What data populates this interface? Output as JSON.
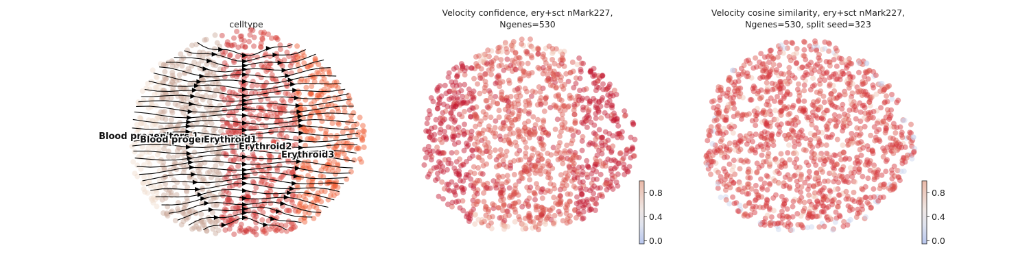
{
  "chart_data": [
    {
      "type": "scatter",
      "title": "celltype",
      "legend": "on data",
      "categories": [
        "Blood progenitors 1",
        "Blood progenitors 2",
        "Erythroid1",
        "Erythroid2",
        "Erythroid3"
      ],
      "category_colors": [
        "#f0dccd",
        "#c9a99a",
        "#cf3a3a",
        "#d8413a",
        "#f05a30"
      ],
      "overlay": "velocity streamlines",
      "grid": false
    },
    {
      "type": "scatter",
      "title_line1": "Velocity confidence, ery+sct nMark227,",
      "title_line2": "Ngenes=530",
      "colorbar": {
        "ticks": [
          "0.0",
          "0.4",
          "0.8"
        ],
        "tick_values": [
          0.0,
          0.4,
          0.8
        ],
        "range": [
          -0.05,
          1.0
        ],
        "colormap": "coolwarm"
      },
      "grid": false
    },
    {
      "type": "scatter",
      "title_line1": "Velocity cosine similarity, ery+sct nMark227,",
      "title_line2": "Ngenes=530, split seed=323",
      "colorbar": {
        "ticks": [
          "0.0",
          "0.4",
          "0.8"
        ],
        "tick_values": [
          0.0,
          0.4,
          0.8
        ],
        "range": [
          -0.05,
          1.0
        ],
        "colormap": "coolwarm"
      },
      "grid": false
    }
  ],
  "labels": {
    "blood1": "Blood progenitors 1",
    "blood2": "Blood progenitors 2",
    "ery1": "Erythroid1",
    "ery2": "Erythroid2",
    "ery3": "Erythroid3"
  },
  "colors": {
    "background": "#ffffff",
    "streamline": "#000000",
    "blood1": "#f0dccd",
    "blood2": "#c9a99a",
    "ery1": "#cf3a3a",
    "ery2": "#d8413a",
    "ery3": "#f05a30",
    "high_confidence": "#c0142c",
    "mid_confidence": "#d9534a",
    "low_confidence": "#f0c0b0"
  }
}
